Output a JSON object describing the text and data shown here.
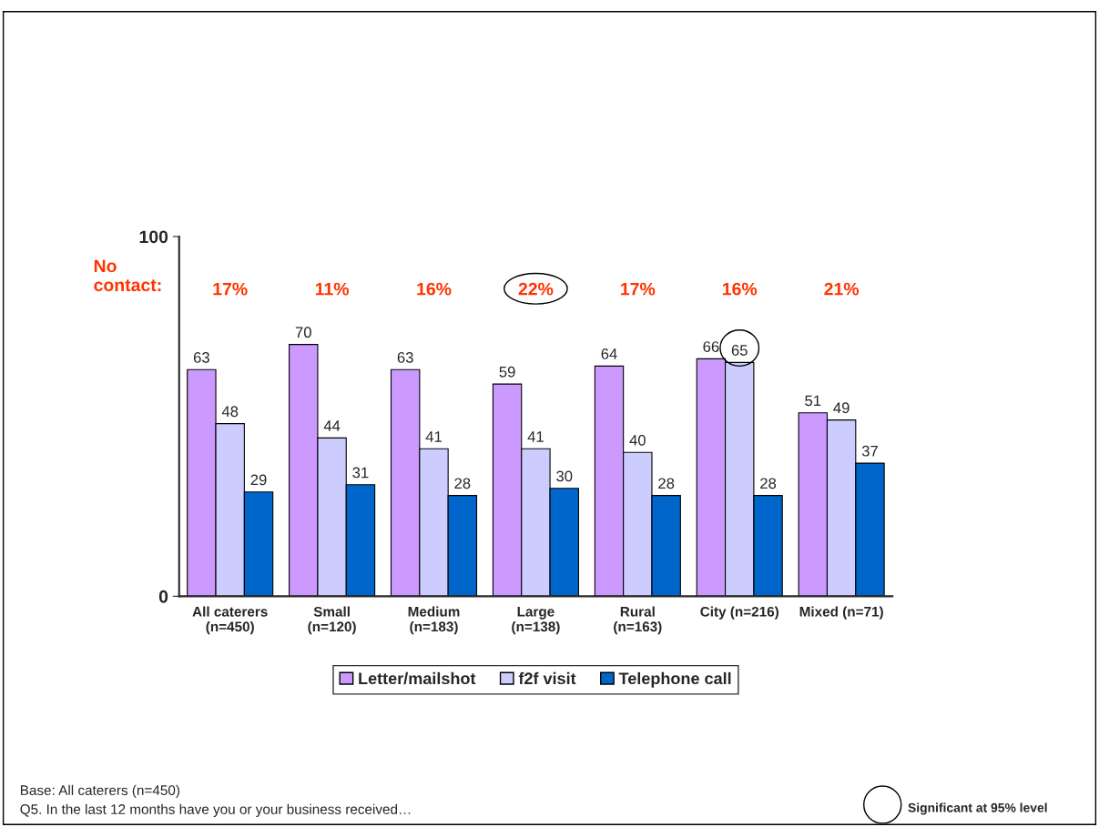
{
  "chart_data": {
    "type": "bar",
    "categories": [
      "All caterers\n(n=450)",
      "Small\n(n=120)",
      "Medium\n(n=183)",
      "Large\n(n=138)",
      "Rural\n(n=163)",
      "City (n=216)",
      "Mixed (n=71)"
    ],
    "series": [
      {
        "name": "Letter/mailshot",
        "color": "#cc99ff",
        "values": [
          63,
          70,
          63,
          59,
          64,
          66,
          51
        ]
      },
      {
        "name": "f2f visit",
        "color": "#ccccff",
        "values": [
          48,
          44,
          41,
          41,
          40,
          65,
          49
        ]
      },
      {
        "name": "Telephone call",
        "color": "#0066cc",
        "values": [
          29,
          31,
          28,
          30,
          28,
          28,
          37
        ]
      }
    ],
    "ylim": [
      0,
      100
    ],
    "yticks": [
      0,
      100
    ],
    "data_labels": true,
    "grid": false,
    "legend": "bottom",
    "annotations": [
      "No\ncontact:",
      "17%",
      "11%",
      "16%",
      "22%",
      "17%",
      "16%",
      "21%",
      "Base: All caterers (n=450)",
      "Q5. In the last 12 months have you or your business received…",
      "Significant at 95% level"
    ]
  }
}
